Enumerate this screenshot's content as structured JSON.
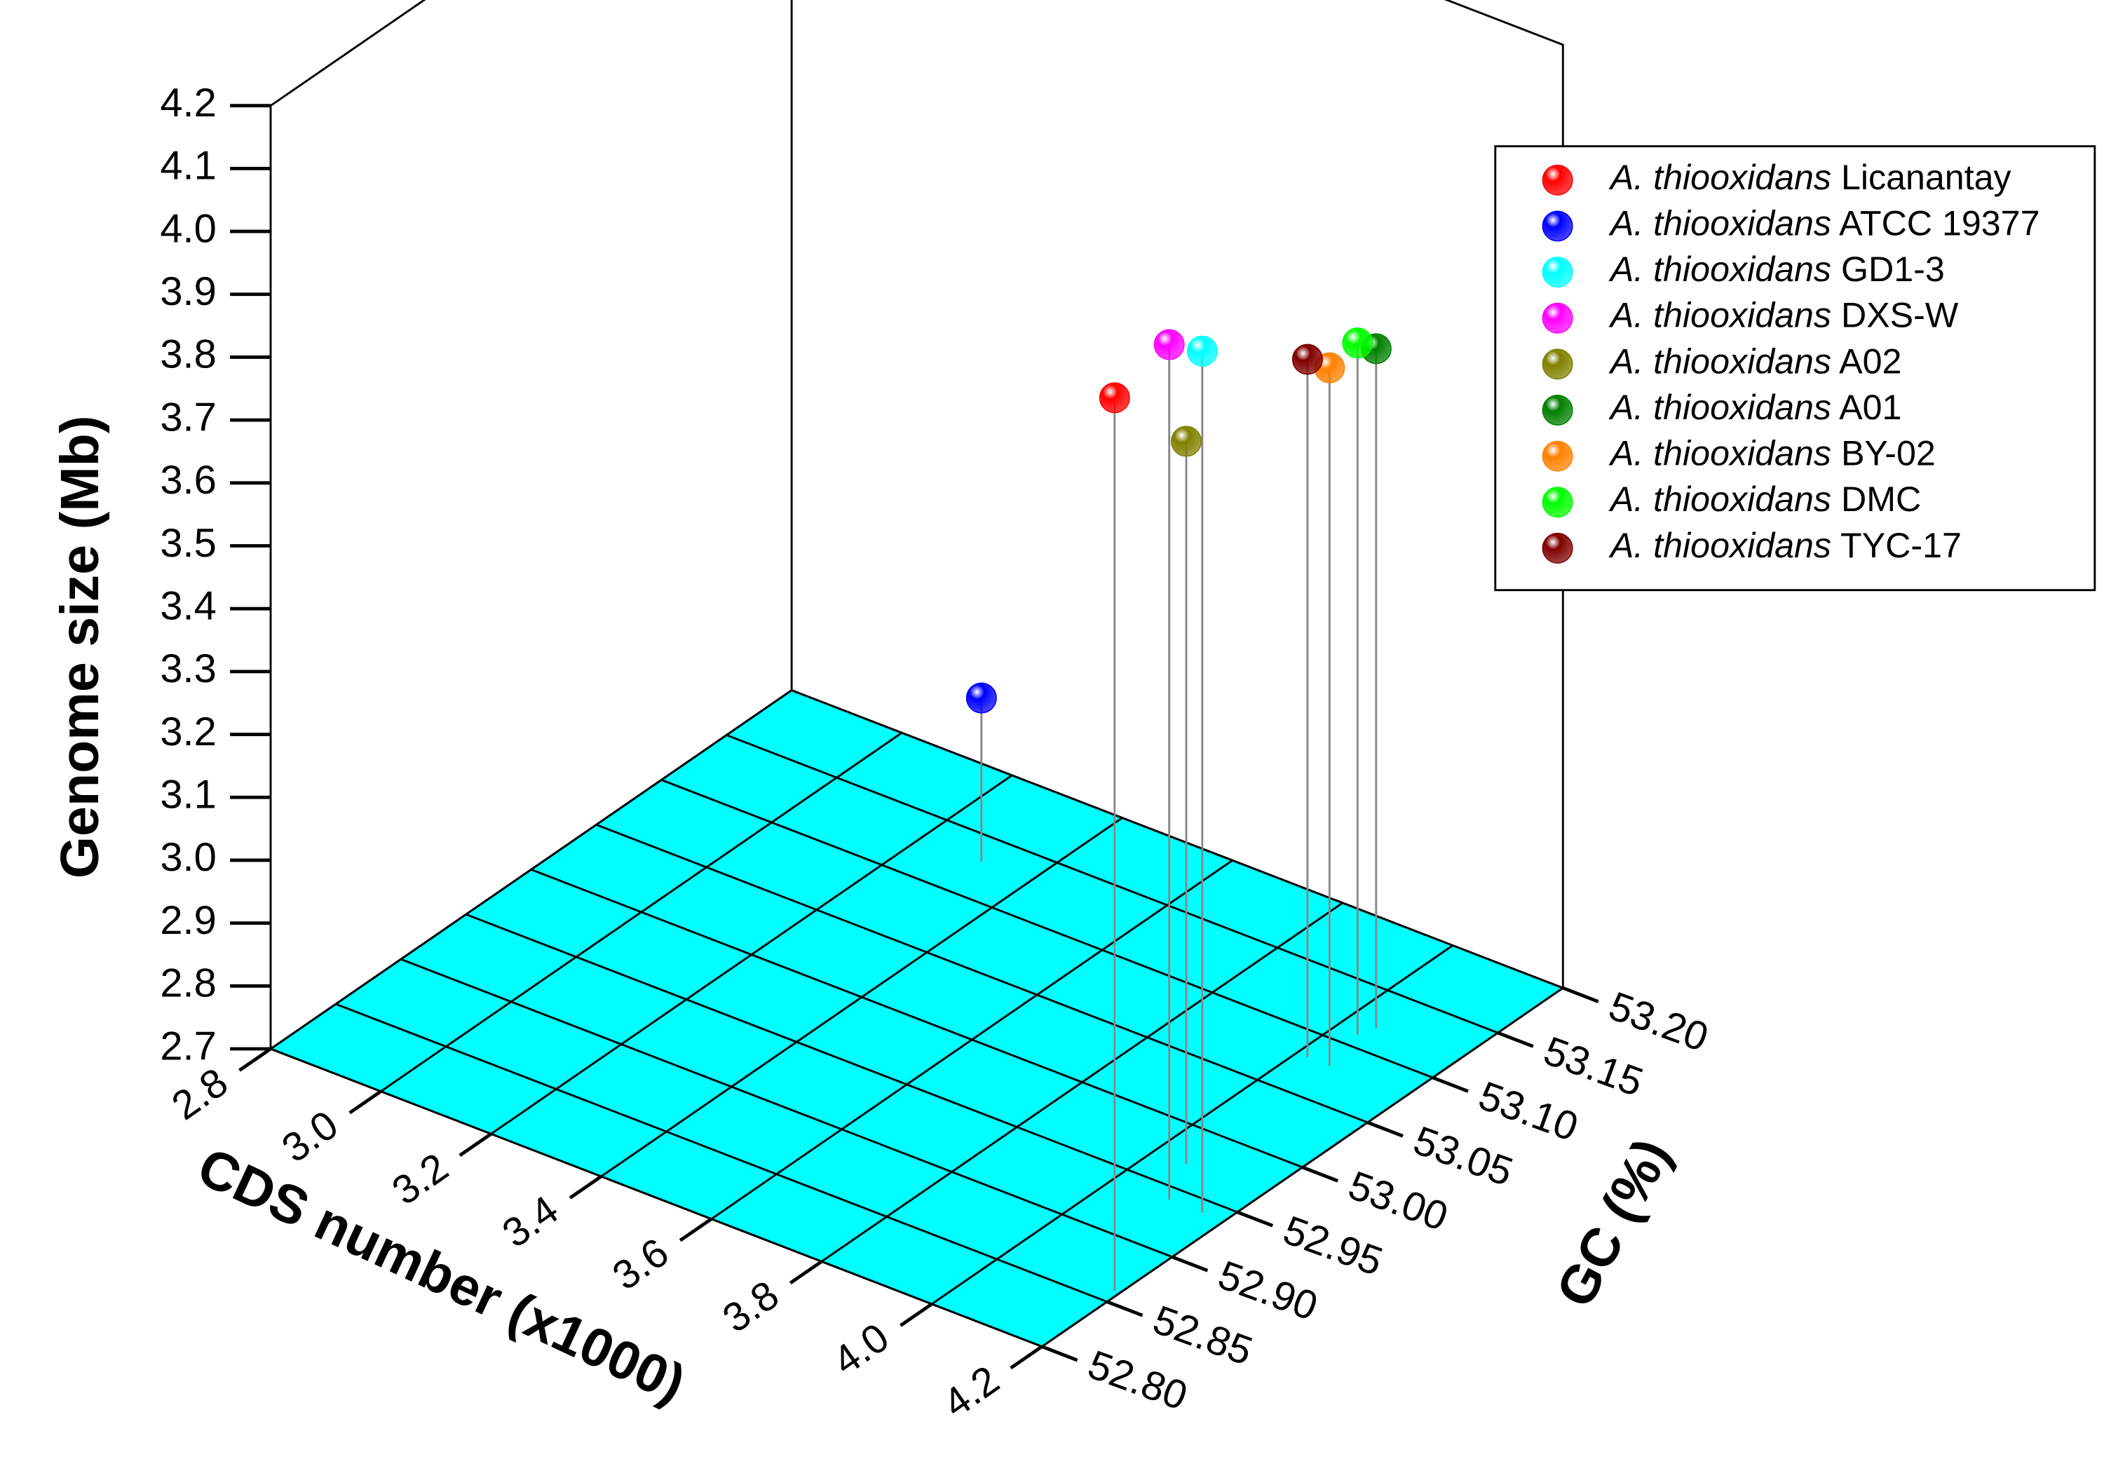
{
  "chart_data": {
    "type": "scatter3d",
    "xlabel": "CDS number (x1000)",
    "ylabel": "GC (%)",
    "zlabel": "Genome size (Mb)",
    "xlim": [
      2.8,
      4.2
    ],
    "xticks": [
      2.8,
      {
        "value": 3.0,
        "label": "3.0"
      },
      3.2,
      3.4,
      3.6,
      3.8,
      {
        "value": 4.0,
        "label": "4.0"
      },
      4.2
    ],
    "ylim": [
      52.8,
      53.2
    ],
    "yticks": [
      {
        "value": 52.8,
        "label": "52.80"
      },
      52.85,
      {
        "value": 52.9,
        "label": "52.90"
      },
      52.95,
      {
        "value": 53.0,
        "label": "53.00"
      },
      53.05,
      {
        "value": 53.1,
        "label": "53.10"
      },
      53.15,
      {
        "value": 53.2,
        "label": "53.20"
      }
    ],
    "zlim": [
      2.7,
      4.2
    ],
    "zticks": [
      2.7,
      2.8,
      2.9,
      {
        "value": 3.0,
        "label": "3.0"
      },
      3.1,
      3.2,
      3.3,
      3.4,
      3.5,
      3.6,
      3.7,
      3.8,
      3.9,
      {
        "value": 4.0,
        "label": "4.0"
      },
      4.1,
      4.2
    ],
    "floor_color": "#00ffff",
    "legend": "upper right",
    "series": [
      {
        "name": "A. thiooxidans Licanantay",
        "color": "#ff0000",
        "x": [
          4.19
        ],
        "y": [
          52.86
        ],
        "z": [
          4.12
        ]
      },
      {
        "name": "A. thiooxidans ATCC 19377",
        "color": "#0000ff",
        "x": [
          3.31
        ],
        "y": [
          53.13
        ],
        "z": [
          2.96
        ]
      },
      {
        "name": "A. thiooxidans GD1-3",
        "color": "#00ffff",
        "x": [
          4.16
        ],
        "y": [
          52.94
        ],
        "z": [
          4.07
        ]
      },
      {
        "name": "A. thiooxidans DXS-W",
        "color": "#ff00ff",
        "x": [
          4.1
        ],
        "y": [
          52.94
        ],
        "z": [
          4.06
        ]
      },
      {
        "name": "A. thiooxidans A02",
        "color": "#808000",
        "x": [
          4.06
        ],
        "y": [
          52.97
        ],
        "z": [
          3.85
        ]
      },
      {
        "name": "A. thiooxidans A01",
        "color": "#008000",
        "x": [
          4.05
        ],
        "y": [
          53.12
        ],
        "z": [
          3.78
        ]
      },
      {
        "name": "A. thiooxidans BY-02",
        "color": "#ff8000",
        "x": [
          4.06
        ],
        "y": [
          53.08
        ],
        "z": [
          3.81
        ]
      },
      {
        "name": "A. thiooxidans DMC",
        "color": "#00ff00",
        "x": [
          4.04
        ],
        "y": [
          53.11
        ],
        "z": [
          3.8
        ]
      },
      {
        "name": "A. thiooxidans TYC-17",
        "color": "#800000",
        "x": [
          4.02
        ],
        "y": [
          53.08
        ],
        "z": [
          3.81
        ]
      }
    ]
  }
}
